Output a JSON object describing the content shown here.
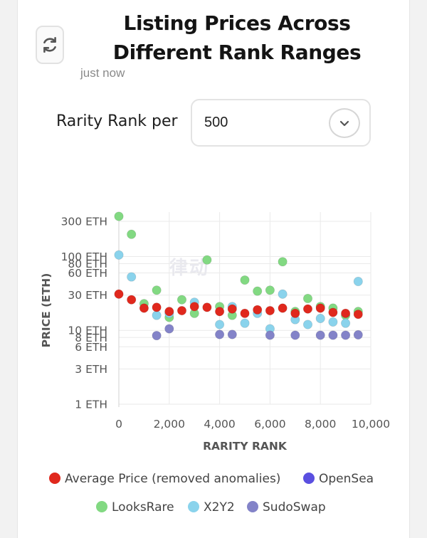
{
  "header": {
    "title": "Listing Prices Across Different Rank Ranges",
    "timestamp": "just now"
  },
  "controls": {
    "rank_label": "Rarity Rank per",
    "rank_select_value": "500"
  },
  "watermark_text": "律动",
  "icons": {
    "refresh": "refresh-icon",
    "chevron": "chevron-down-icon"
  },
  "chart_data": {
    "type": "scatter",
    "xlabel": "RARITY RANK",
    "ylabel": "PRICE (ETH)",
    "xlim": [
      0,
      10000
    ],
    "ylim": [
      1,
      400
    ],
    "yscale": "log",
    "grid": true,
    "legend_position": "bottom",
    "x_ticks": [
      {
        "value": 0,
        "label": "0"
      },
      {
        "value": 2000,
        "label": "2,000"
      },
      {
        "value": 4000,
        "label": "4,000"
      },
      {
        "value": 6000,
        "label": "6,000"
      },
      {
        "value": 8000,
        "label": "8,000"
      },
      {
        "value": 10000,
        "label": "10,000"
      }
    ],
    "y_ticks": [
      {
        "value": 300,
        "label": "300 ETH"
      },
      {
        "value": 100,
        "label": "100 ETH"
      },
      {
        "value": 80,
        "label": "80 ETH"
      },
      {
        "value": 60,
        "label": "60 ETH"
      },
      {
        "value": 30,
        "label": "30 ETH"
      },
      {
        "value": 10,
        "label": "10 ETH"
      },
      {
        "value": 8,
        "label": "8 ETH"
      },
      {
        "value": 6,
        "label": "6 ETH"
      },
      {
        "value": 3,
        "label": "3 ETH"
      },
      {
        "value": 1,
        "label": "1 ETH"
      }
    ],
    "series": [
      {
        "name": "LooksRare",
        "color": "#82d982",
        "points": [
          [
            0,
            350
          ],
          [
            500,
            200
          ],
          [
            1000,
            23
          ],
          [
            1500,
            35
          ],
          [
            2000,
            15
          ],
          [
            2500,
            26
          ],
          [
            3000,
            17
          ],
          [
            3500,
            90
          ],
          [
            4000,
            21
          ],
          [
            4500,
            16
          ],
          [
            5000,
            48
          ],
          [
            5500,
            34
          ],
          [
            6000,
            35
          ],
          [
            6500,
            85
          ],
          [
            7000,
            18
          ],
          [
            7500,
            27
          ],
          [
            8000,
            21
          ],
          [
            8500,
            20
          ],
          [
            9000,
            16
          ],
          [
            9500,
            18
          ]
        ]
      },
      {
        "name": "X2Y2",
        "color": "#8ad3ec",
        "points": [
          [
            0,
            105
          ],
          [
            500,
            53
          ],
          [
            1500,
            16
          ],
          [
            2000,
            17
          ],
          [
            3000,
            24
          ],
          [
            4000,
            12
          ],
          [
            4500,
            21
          ],
          [
            5000,
            12.5
          ],
          [
            5500,
            17
          ],
          [
            6000,
            10.5
          ],
          [
            6500,
            31
          ],
          [
            7000,
            14
          ],
          [
            7500,
            12
          ],
          [
            8000,
            14.5
          ],
          [
            8500,
            13
          ],
          [
            9000,
            12.5
          ],
          [
            9500,
            46
          ]
        ]
      },
      {
        "name": "SudoSwap",
        "color": "#8383c8",
        "points": [
          [
            1500,
            8.5
          ],
          [
            2000,
            10.5
          ],
          [
            4000,
            8.8
          ],
          [
            4500,
            8.8
          ],
          [
            6000,
            8.6
          ],
          [
            7000,
            8.6
          ],
          [
            8000,
            8.6
          ],
          [
            8500,
            8.6
          ],
          [
            9000,
            8.6
          ],
          [
            9500,
            8.7
          ]
        ]
      },
      {
        "name": "OpenSea",
        "color": "#5a4fe0",
        "points": []
      },
      {
        "name": "Average Price (removed anomalies)",
        "color": "#e0281d",
        "points": [
          [
            0,
            31
          ],
          [
            500,
            26
          ],
          [
            1000,
            20
          ],
          [
            1500,
            20.5
          ],
          [
            2000,
            18
          ],
          [
            2500,
            18.5
          ],
          [
            3000,
            21
          ],
          [
            3500,
            20.5
          ],
          [
            4000,
            18
          ],
          [
            4500,
            19.5
          ],
          [
            5000,
            17
          ],
          [
            5500,
            19
          ],
          [
            6000,
            18.5
          ],
          [
            6500,
            20
          ],
          [
            7000,
            17
          ],
          [
            7500,
            19.5
          ],
          [
            8000,
            20
          ],
          [
            8500,
            17.5
          ],
          [
            9000,
            17
          ],
          [
            9500,
            16.5
          ]
        ]
      }
    ],
    "legend": [
      {
        "name": "Average Price (removed anomalies)",
        "color": "#e0281d"
      },
      {
        "name": "OpenSea",
        "color": "#5a4fe0"
      },
      {
        "name": "LooksRare",
        "color": "#82d982"
      },
      {
        "name": "X2Y2",
        "color": "#8ad3ec"
      },
      {
        "name": "SudoSwap",
        "color": "#8383c8"
      }
    ]
  }
}
